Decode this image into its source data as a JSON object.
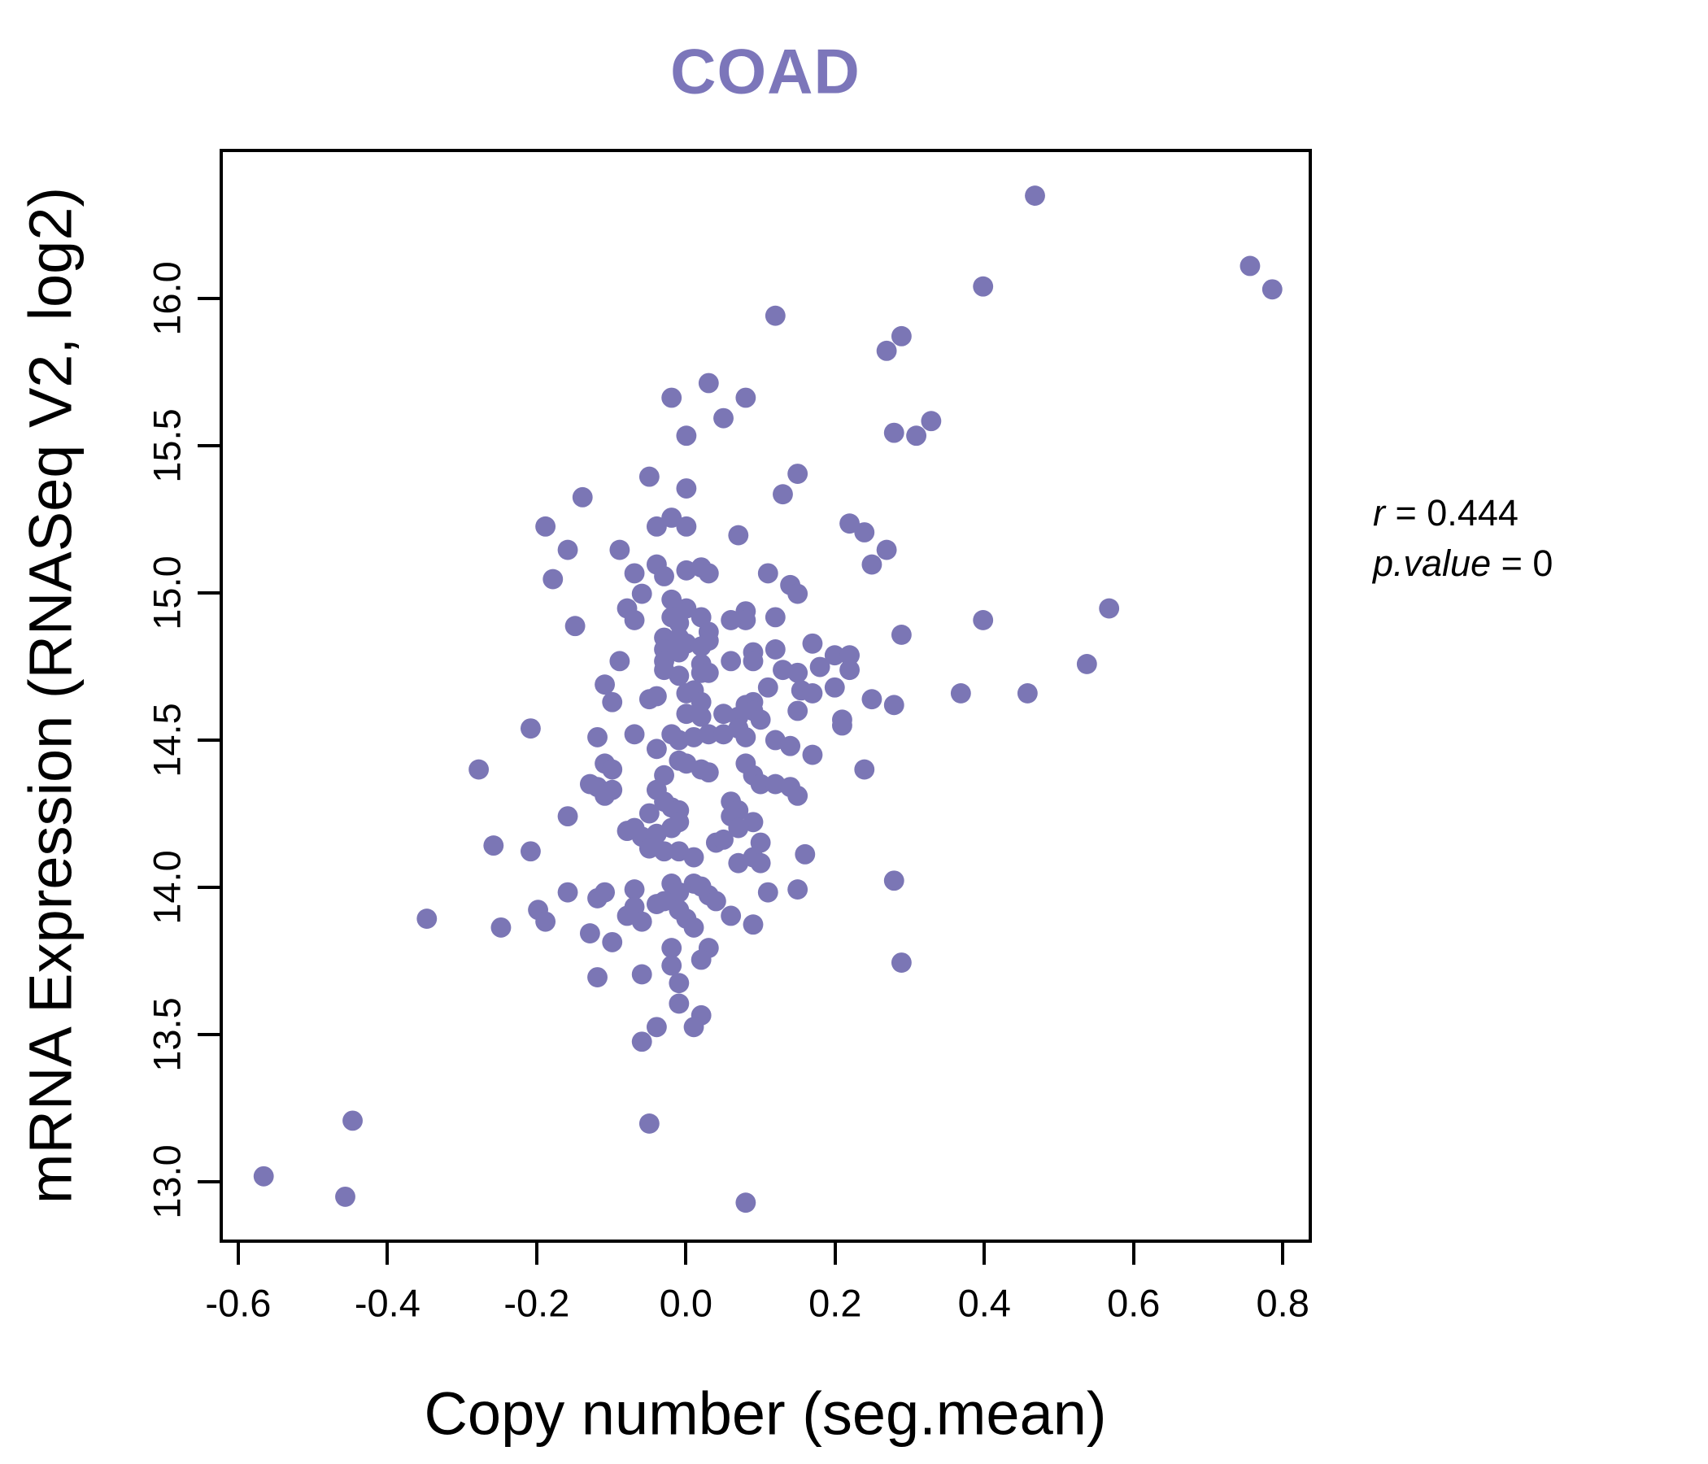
{
  "title": {
    "text": "COAD",
    "color": "#7c76ba"
  },
  "stats": {
    "r_var": "r",
    "r_rest": " = 0.444",
    "p_var": "p.value",
    "p_rest": " = 0"
  },
  "chart_data": {
    "type": "scatter",
    "title": "COAD",
    "xlabel": "Copy number (seg.mean)",
    "ylabel": "mRNA Expression (RNASeq V2, log2)",
    "x_ticks": [
      -0.6,
      -0.4,
      -0.2,
      0.0,
      0.2,
      0.4,
      0.6,
      0.8
    ],
    "y_ticks": [
      13.0,
      13.5,
      14.0,
      14.5,
      15.0,
      15.5,
      16.0
    ],
    "xlim": [
      -0.625,
      0.839
    ],
    "ylim": [
      12.794,
      16.509
    ],
    "grid": false,
    "point_color": "#7b76b5",
    "correlation": {
      "r": 0.444,
      "p_value": 0
    },
    "points": [
      [
        -0.57,
        13.01
      ],
      [
        -0.46,
        12.94
      ],
      [
        -0.45,
        13.2
      ],
      [
        -0.35,
        13.89
      ],
      [
        -0.25,
        13.86
      ],
      [
        -0.2,
        13.92
      ],
      [
        -0.19,
        13.88
      ],
      [
        -0.16,
        13.98
      ],
      [
        -0.14,
        15.33
      ],
      [
        0.12,
        15.95
      ],
      [
        0.29,
        15.88
      ],
      [
        0.27,
        15.83
      ],
      [
        0.03,
        15.72
      ],
      [
        -0.02,
        15.67
      ],
      [
        0.08,
        15.67
      ],
      [
        0.05,
        15.6
      ],
      [
        0.0,
        15.54
      ],
      [
        0.28,
        15.55
      ],
      [
        0.31,
        15.54
      ],
      [
        0.33,
        15.59
      ],
      [
        -0.05,
        15.4
      ],
      [
        0.0,
        15.36
      ],
      [
        0.15,
        15.41
      ],
      [
        0.13,
        15.34
      ],
      [
        0.47,
        16.36
      ],
      [
        0.4,
        16.05
      ],
      [
        0.76,
        16.12
      ],
      [
        0.79,
        16.04
      ],
      [
        -0.19,
        15.23
      ],
      [
        -0.16,
        15.15
      ],
      [
        -0.18,
        15.05
      ],
      [
        -0.15,
        14.89
      ],
      [
        -0.21,
        14.54
      ],
      [
        -0.28,
        14.4
      ],
      [
        -0.13,
        14.35
      ],
      [
        -0.16,
        14.24
      ],
      [
        -0.26,
        14.14
      ],
      [
        -0.21,
        14.12
      ],
      [
        0.4,
        14.91
      ],
      [
        0.57,
        14.95
      ],
      [
        0.54,
        14.76
      ],
      [
        0.37,
        14.66
      ],
      [
        0.46,
        14.66
      ],
      [
        -0.04,
        15.23
      ],
      [
        -0.02,
        15.26
      ],
      [
        0.0,
        15.23
      ],
      [
        0.07,
        15.2
      ],
      [
        0.22,
        15.24
      ],
      [
        0.24,
        15.21
      ],
      [
        0.27,
        15.15
      ],
      [
        0.25,
        15.1
      ],
      [
        -0.09,
        15.15
      ],
      [
        -0.04,
        15.1
      ],
      [
        -0.07,
        15.07
      ],
      [
        -0.03,
        15.06
      ],
      [
        0.0,
        15.08
      ],
      [
        0.02,
        15.09
      ],
      [
        0.03,
        15.07
      ],
      [
        0.11,
        15.07
      ],
      [
        0.14,
        15.03
      ],
      [
        0.15,
        15.0
      ],
      [
        -0.06,
        15.0
      ],
      [
        -0.02,
        14.98
      ],
      [
        0.0,
        14.95
      ],
      [
        -0.08,
        14.95
      ],
      [
        -0.07,
        14.91
      ],
      [
        -0.02,
        14.92
      ],
      [
        -0.01,
        14.9
      ],
      [
        0.02,
        14.92
      ],
      [
        0.08,
        14.94
      ],
      [
        0.08,
        14.91
      ],
      [
        0.06,
        14.91
      ],
      [
        0.12,
        14.92
      ],
      [
        0.03,
        14.87
      ],
      [
        -0.03,
        14.85
      ],
      [
        -0.01,
        14.85
      ],
      [
        0.0,
        14.83
      ],
      [
        0.02,
        14.82
      ],
      [
        0.03,
        14.84
      ],
      [
        -0.03,
        14.81
      ],
      [
        -0.01,
        14.8
      ],
      [
        0.17,
        14.83
      ],
      [
        0.2,
        14.79
      ],
      [
        0.09,
        14.8
      ],
      [
        0.09,
        14.77
      ],
      [
        0.12,
        14.81
      ],
      [
        0.22,
        14.79
      ],
      [
        0.22,
        14.74
      ],
      [
        0.29,
        14.86
      ],
      [
        -0.09,
        14.77
      ],
      [
        -0.03,
        14.77
      ],
      [
        0.02,
        14.76
      ],
      [
        0.06,
        14.77
      ],
      [
        -0.03,
        14.74
      ],
      [
        -0.01,
        14.72
      ],
      [
        0.02,
        14.73
      ],
      [
        0.03,
        14.73
      ],
      [
        0.13,
        14.74
      ],
      [
        0.15,
        14.73
      ],
      [
        0.18,
        14.75
      ],
      [
        0.2,
        14.68
      ],
      [
        -0.11,
        14.69
      ],
      [
        -0.1,
        14.63
      ],
      [
        -0.05,
        14.64
      ],
      [
        -0.04,
        14.65
      ],
      [
        0.0,
        14.66
      ],
      [
        0.01,
        14.67
      ],
      [
        0.02,
        14.63
      ],
      [
        0.09,
        14.63
      ],
      [
        0.11,
        14.68
      ],
      [
        0.155,
        14.67
      ],
      [
        0.17,
        14.66
      ],
      [
        0.25,
        14.64
      ],
      [
        0.28,
        14.62
      ],
      [
        0.08,
        14.62
      ],
      [
        0.0,
        14.59
      ],
      [
        0.02,
        14.58
      ],
      [
        0.05,
        14.59
      ],
      [
        0.07,
        14.58
      ],
      [
        0.09,
        14.6
      ],
      [
        0.1,
        14.57
      ],
      [
        0.15,
        14.6
      ],
      [
        0.21,
        14.57
      ],
      [
        0.21,
        14.55
      ],
      [
        -0.12,
        14.51
      ],
      [
        -0.07,
        14.52
      ],
      [
        -0.04,
        14.47
      ],
      [
        -0.02,
        14.52
      ],
      [
        -0.01,
        14.5
      ],
      [
        0.01,
        14.51
      ],
      [
        0.03,
        14.52
      ],
      [
        0.05,
        14.52
      ],
      [
        0.07,
        14.54
      ],
      [
        0.08,
        14.51
      ],
      [
        0.12,
        14.5
      ],
      [
        0.14,
        14.48
      ],
      [
        0.17,
        14.45
      ],
      [
        0.24,
        14.4
      ],
      [
        -0.01,
        14.43
      ],
      [
        0.0,
        14.42
      ],
      [
        0.02,
        14.4
      ],
      [
        0.03,
        14.39
      ],
      [
        -0.03,
        14.38
      ],
      [
        0.08,
        14.42
      ],
      [
        0.09,
        14.38
      ],
      [
        0.1,
        14.35
      ],
      [
        0.12,
        14.35
      ],
      [
        0.14,
        14.34
      ],
      [
        0.15,
        14.31
      ],
      [
        -0.11,
        14.42
      ],
      [
        -0.1,
        14.4
      ],
      [
        -0.12,
        14.34
      ],
      [
        -0.1,
        14.33
      ],
      [
        -0.11,
        14.31
      ],
      [
        -0.04,
        14.33
      ],
      [
        -0.03,
        14.29
      ],
      [
        -0.02,
        14.27
      ],
      [
        -0.01,
        14.26
      ],
      [
        0.06,
        14.29
      ],
      [
        0.07,
        14.26
      ],
      [
        0.06,
        14.24
      ],
      [
        0.09,
        14.22
      ],
      [
        0.1,
        14.15
      ],
      [
        -0.05,
        14.25
      ],
      [
        -0.08,
        14.19
      ],
      [
        -0.07,
        14.2
      ],
      [
        -0.06,
        14.17
      ],
      [
        -0.04,
        14.18
      ],
      [
        -0.02,
        14.2
      ],
      [
        -0.01,
        14.22
      ],
      [
        -0.05,
        14.13
      ],
      [
        -0.03,
        14.12
      ],
      [
        -0.01,
        14.12
      ],
      [
        0.01,
        14.1
      ],
      [
        0.04,
        14.15
      ],
      [
        0.05,
        14.16
      ],
      [
        0.07,
        14.2
      ],
      [
        0.16,
        14.11
      ],
      [
        0.07,
        14.08
      ],
      [
        0.09,
        14.1
      ],
      [
        0.1,
        14.08
      ],
      [
        -0.12,
        13.96
      ],
      [
        -0.11,
        13.98
      ],
      [
        -0.13,
        13.84
      ],
      [
        -0.1,
        13.81
      ],
      [
        -0.08,
        13.9
      ],
      [
        -0.07,
        13.99
      ],
      [
        -0.07,
        13.93
      ],
      [
        -0.06,
        13.88
      ],
      [
        -0.04,
        13.94
      ],
      [
        -0.02,
        14.01
      ],
      [
        -0.01,
        13.98
      ],
      [
        0.01,
        14.01
      ],
      [
        0.02,
        14.0
      ],
      [
        0.03,
        13.97
      ],
      [
        0.04,
        13.95
      ],
      [
        -0.03,
        13.95
      ],
      [
        -0.01,
        13.92
      ],
      [
        0.0,
        13.89
      ],
      [
        0.01,
        13.86
      ],
      [
        0.11,
        13.98
      ],
      [
        0.15,
        13.99
      ],
      [
        0.06,
        13.9
      ],
      [
        0.09,
        13.87
      ],
      [
        0.28,
        14.02
      ],
      [
        0.03,
        13.79
      ],
      [
        -0.02,
        13.79
      ],
      [
        -0.02,
        13.73
      ],
      [
        -0.01,
        13.67
      ],
      [
        0.02,
        13.75
      ],
      [
        -0.06,
        13.7
      ],
      [
        -0.12,
        13.69
      ],
      [
        0.29,
        13.74
      ],
      [
        -0.01,
        13.6
      ],
      [
        0.02,
        13.56
      ],
      [
        0.01,
        13.52
      ],
      [
        -0.04,
        13.52
      ],
      [
        -0.06,
        13.47
      ],
      [
        -0.05,
        13.19
      ],
      [
        0.08,
        12.92
      ]
    ]
  }
}
